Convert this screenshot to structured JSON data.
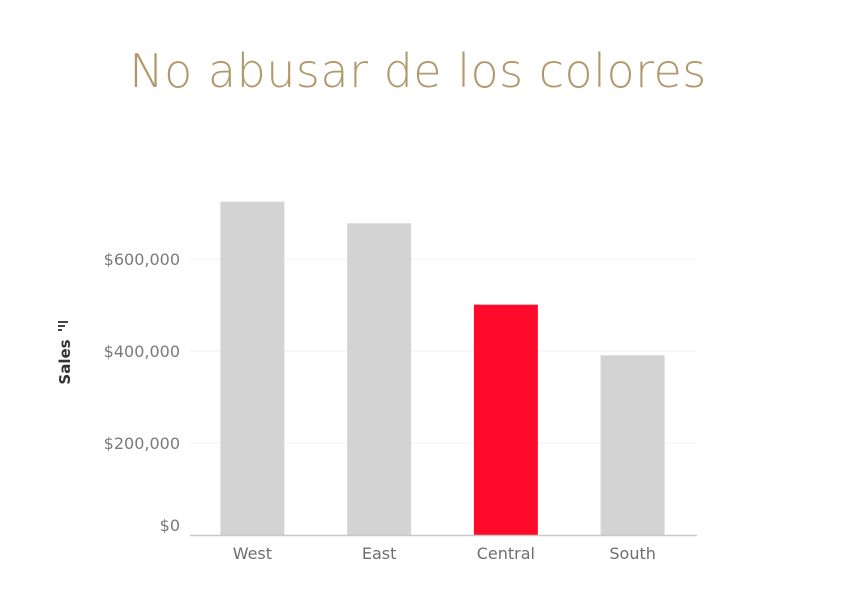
{
  "slide": {
    "title": "No abusar de los colores"
  },
  "chart_data": {
    "type": "bar",
    "categories": [
      "West",
      "East",
      "Central",
      "South"
    ],
    "values": [
      725000,
      678000,
      501000,
      391000
    ],
    "ylabel": "Sales",
    "ylim": [
      0,
      720000
    ],
    "yticks": [
      0,
      200000,
      400000,
      600000
    ],
    "ytick_labels": [
      "$0",
      "$200,000",
      "$400,000",
      "$600,000"
    ],
    "highlight_category": "Central",
    "grid": true,
    "colors": {
      "default_bar": "#d3d3d3",
      "highlight_bar": "#ff0a2b",
      "gridline": "#f0f0f0",
      "axis_line": "#c8c8c8",
      "sort_icon": "#444444"
    }
  }
}
